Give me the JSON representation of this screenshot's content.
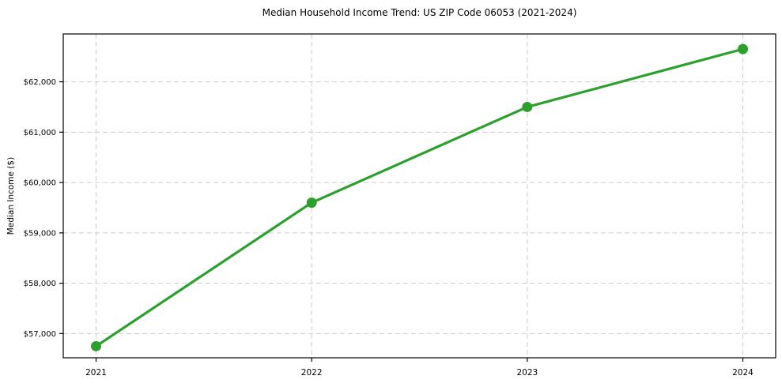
{
  "chart_data": {
    "type": "line",
    "title": "Median Household Income Trend: US ZIP Code 06053 (2021-2024)",
    "xlabel": "",
    "ylabel": "Median Income ($)",
    "categories": [
      "2021",
      "2022",
      "2023",
      "2024"
    ],
    "series": [
      {
        "name": "Median Household Income",
        "values": [
          56750,
          59600,
          61500,
          62650
        ],
        "color": "#2ca02c",
        "marker": "circle"
      }
    ],
    "y_ticks": [
      57000,
      58000,
      59000,
      60000,
      61000,
      62000
    ],
    "y_tick_labels": [
      "$57,000",
      "$58,000",
      "$59,000",
      "$60,000",
      "$61,000",
      "$62,000"
    ],
    "ylim": [
      56520,
      62950
    ],
    "grid": "both",
    "grid_style": "dashed",
    "legend_position": "none",
    "colors": {
      "line": "#2ca02c",
      "grid": "#cccccc",
      "spine": "#000000",
      "background": "#ffffff",
      "text": "#000000"
    }
  }
}
